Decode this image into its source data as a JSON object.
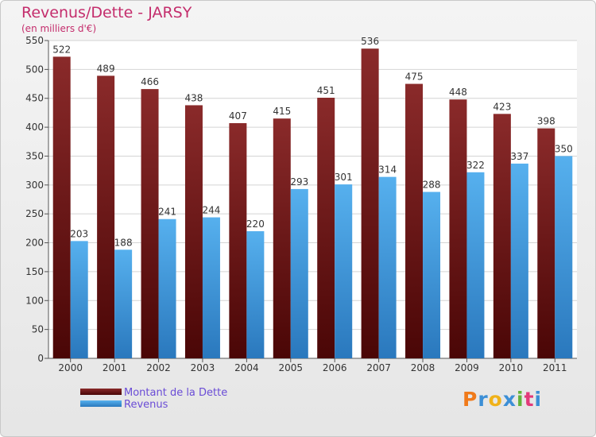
{
  "chart_data": {
    "type": "bar",
    "title": "Revenus/Dette - JARSY",
    "subtitle": "(en milliers d'€)",
    "categories": [
      "2000",
      "2001",
      "2002",
      "2003",
      "2004",
      "2005",
      "2006",
      "2007",
      "2008",
      "2009",
      "2010",
      "2011"
    ],
    "series": [
      {
        "name": "Montant de la Dette",
        "color": "#7a1c1c",
        "values": [
          522,
          489,
          466,
          438,
          407,
          415,
          451,
          536,
          475,
          448,
          423,
          398
        ]
      },
      {
        "name": "Revenus",
        "color": "#4aa3e6",
        "values": [
          203,
          188,
          241,
          244,
          220,
          293,
          301,
          314,
          288,
          322,
          337,
          350
        ]
      }
    ],
    "ylim": [
      0,
      550
    ],
    "yticks": [
      0,
      50,
      100,
      150,
      200,
      250,
      300,
      350,
      400,
      450,
      500,
      550
    ],
    "grid": true,
    "legend_position": "bottom-left"
  },
  "logo": {
    "letters": [
      "P",
      "r",
      "o",
      "x",
      "i",
      "t",
      "i"
    ],
    "colors": [
      "#f07a1a",
      "#3c8fd6",
      "#f0b21a",
      "#3c8fd6",
      "#62b33a",
      "#e23a7a",
      "#3c8fd6"
    ]
  }
}
